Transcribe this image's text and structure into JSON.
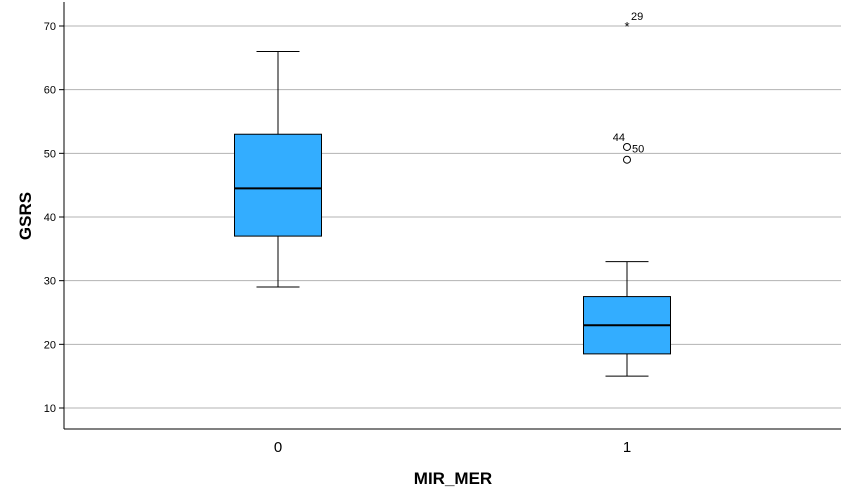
{
  "chart_data": {
    "type": "boxplot",
    "title": "",
    "xlabel": "MIR_MER",
    "ylabel": "GSRS",
    "ylim": [
      7,
      74
    ],
    "yticks": [
      10,
      20,
      30,
      40,
      50,
      60,
      70
    ],
    "grid": "horizontal",
    "box_color": "#33ADFF",
    "categories": [
      "0",
      "1"
    ],
    "boxes": [
      {
        "category": "0",
        "whisker_low": 29,
        "q1": 37,
        "median": 44.5,
        "q3": 53,
        "whisker_high": 66,
        "outliers": []
      },
      {
        "category": "1",
        "whisker_low": 15,
        "q1": 18.5,
        "median": 23,
        "q3": 27.5,
        "whisker_high": 33,
        "outliers": [
          {
            "value": 70,
            "label": "29",
            "marker": "star"
          },
          {
            "value": 51,
            "label": "44",
            "marker": "circle"
          },
          {
            "value": 49,
            "label": "50",
            "marker": "circle"
          }
        ]
      }
    ]
  }
}
